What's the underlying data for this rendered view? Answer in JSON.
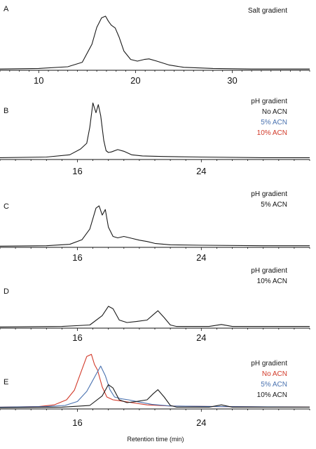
{
  "xlabel": "Retention time (min)",
  "chart_data": [
    {
      "panel": "A",
      "type": "line",
      "annotation": [
        "Salt gradient"
      ],
      "xlim": [
        6,
        38
      ],
      "xticks": [
        10,
        20,
        30
      ],
      "series": [
        {
          "color": "#1a1a1a",
          "x": [
            6,
            10,
            13,
            14.5,
            15.5,
            16,
            16.5,
            16.9,
            17.2,
            17.5,
            17.9,
            18.3,
            18.8,
            19.5,
            20.2,
            20.9,
            21.4,
            22.2,
            23.5,
            25,
            28,
            32,
            38
          ],
          "y": [
            0.01,
            0.02,
            0.05,
            0.13,
            0.45,
            0.75,
            0.92,
            0.95,
            0.86,
            0.79,
            0.74,
            0.58,
            0.33,
            0.18,
            0.15,
            0.18,
            0.19,
            0.15,
            0.08,
            0.04,
            0.02,
            0.01,
            0.01
          ]
        }
      ]
    },
    {
      "panel": "B",
      "type": "line",
      "annotation": [
        "pH gradient",
        "No ACN",
        "5% ACN",
        "10% ACN"
      ],
      "annotation_colors": [
        "#1a1a1a",
        "#1a1a1a",
        "#4a72b0",
        "#d23a2a"
      ],
      "xlim": [
        11,
        31
      ],
      "xticks": [
        16,
        24
      ],
      "series": [
        {
          "name": "No ACN",
          "color": "#1a1a1a",
          "x": [
            11,
            14,
            15.5,
            16.2,
            16.6,
            16.8,
            17.0,
            17.2,
            17.35,
            17.5,
            17.7,
            17.85,
            18.0,
            18.2,
            18.6,
            19.0,
            19.5,
            20.2,
            21.5,
            24,
            28,
            31
          ],
          "y": [
            0.02,
            0.03,
            0.07,
            0.17,
            0.27,
            0.55,
            0.97,
            0.8,
            0.94,
            0.75,
            0.32,
            0.14,
            0.11,
            0.12,
            0.16,
            0.13,
            0.07,
            0.05,
            0.04,
            0.03,
            0.02,
            0.02
          ]
        }
      ]
    },
    {
      "panel": "C",
      "type": "line",
      "annotation": [
        "pH gradient",
        "5% ACN"
      ],
      "xlim": [
        11,
        31
      ],
      "xticks": [
        16,
        24
      ],
      "series": [
        {
          "name": "5% ACN",
          "color": "#1a1a1a",
          "x": [
            11,
            14,
            15.5,
            16.3,
            16.8,
            17.2,
            17.4,
            17.6,
            17.8,
            18.0,
            18.3,
            18.6,
            19.0,
            19.5,
            20.0,
            20.5,
            21.0,
            22,
            24,
            28,
            31
          ],
          "y": [
            0.01,
            0.02,
            0.05,
            0.15,
            0.38,
            0.83,
            0.88,
            0.68,
            0.8,
            0.42,
            0.22,
            0.19,
            0.22,
            0.18,
            0.14,
            0.11,
            0.07,
            0.04,
            0.03,
            0.02,
            0.02
          ]
        }
      ]
    },
    {
      "panel": "D",
      "type": "line",
      "annotation": [
        "pH gradient",
        "10% ACN"
      ],
      "xlim": [
        11,
        31
      ],
      "xticks": [
        16,
        24
      ],
      "series": [
        {
          "name": "10% ACN",
          "color": "#1a1a1a",
          "x": [
            11,
            15,
            16.8,
            17.6,
            18.0,
            18.3,
            18.7,
            19.2,
            19.8,
            20.5,
            20.9,
            21.2,
            21.6,
            22.0,
            22.4,
            23,
            24.5,
            25.3,
            26,
            28,
            31
          ],
          "y": [
            0.01,
            0.02,
            0.05,
            0.24,
            0.43,
            0.38,
            0.15,
            0.1,
            0.12,
            0.15,
            0.26,
            0.34,
            0.2,
            0.05,
            0.02,
            0.02,
            0.02,
            0.06,
            0.02,
            0.02,
            0.02
          ]
        }
      ]
    },
    {
      "panel": "E",
      "type": "line",
      "annotation": [
        "pH gradient",
        "No ACN",
        "5% ACN",
        "10% ACN"
      ],
      "annotation_colors": [
        "#1a1a1a",
        "#d23a2a",
        "#4a72b0",
        "#1a1a1a"
      ],
      "xlim": [
        11,
        31
      ],
      "xticks": [
        16,
        24
      ],
      "series": [
        {
          "name": "No ACN",
          "color": "#d23a2a",
          "x": [
            11,
            13.5,
            14.5,
            15.3,
            15.8,
            16.2,
            16.6,
            16.9,
            17.1,
            17.3,
            17.6,
            17.9,
            18.3,
            18.8,
            19.5,
            20.5,
            22,
            25,
            31
          ],
          "y": [
            0.02,
            0.03,
            0.06,
            0.15,
            0.32,
            0.62,
            0.92,
            0.96,
            0.78,
            0.68,
            0.38,
            0.2,
            0.15,
            0.13,
            0.1,
            0.06,
            0.04,
            0.03,
            0.02
          ]
        },
        {
          "name": "5% ACN",
          "color": "#4a72b0",
          "x": [
            11,
            14,
            15.2,
            16.0,
            16.6,
            17.2,
            17.5,
            17.8,
            18.1,
            18.4,
            18.8,
            19.3,
            20.0,
            20.8,
            22,
            25,
            31
          ],
          "y": [
            0.02,
            0.03,
            0.05,
            0.12,
            0.3,
            0.6,
            0.75,
            0.58,
            0.33,
            0.2,
            0.17,
            0.15,
            0.11,
            0.07,
            0.04,
            0.03,
            0.02
          ]
        },
        {
          "name": "10% ACN",
          "color": "#1a1a1a",
          "x": [
            11,
            15,
            16.8,
            17.6,
            18.0,
            18.3,
            18.7,
            19.2,
            19.8,
            20.5,
            20.9,
            21.2,
            21.6,
            22.0,
            22.4,
            23,
            24.5,
            25.3,
            26,
            28,
            31
          ],
          "y": [
            0.01,
            0.02,
            0.05,
            0.22,
            0.42,
            0.36,
            0.15,
            0.1,
            0.12,
            0.15,
            0.26,
            0.33,
            0.2,
            0.05,
            0.02,
            0.02,
            0.02,
            0.06,
            0.02,
            0.02,
            0.02
          ]
        }
      ]
    }
  ]
}
